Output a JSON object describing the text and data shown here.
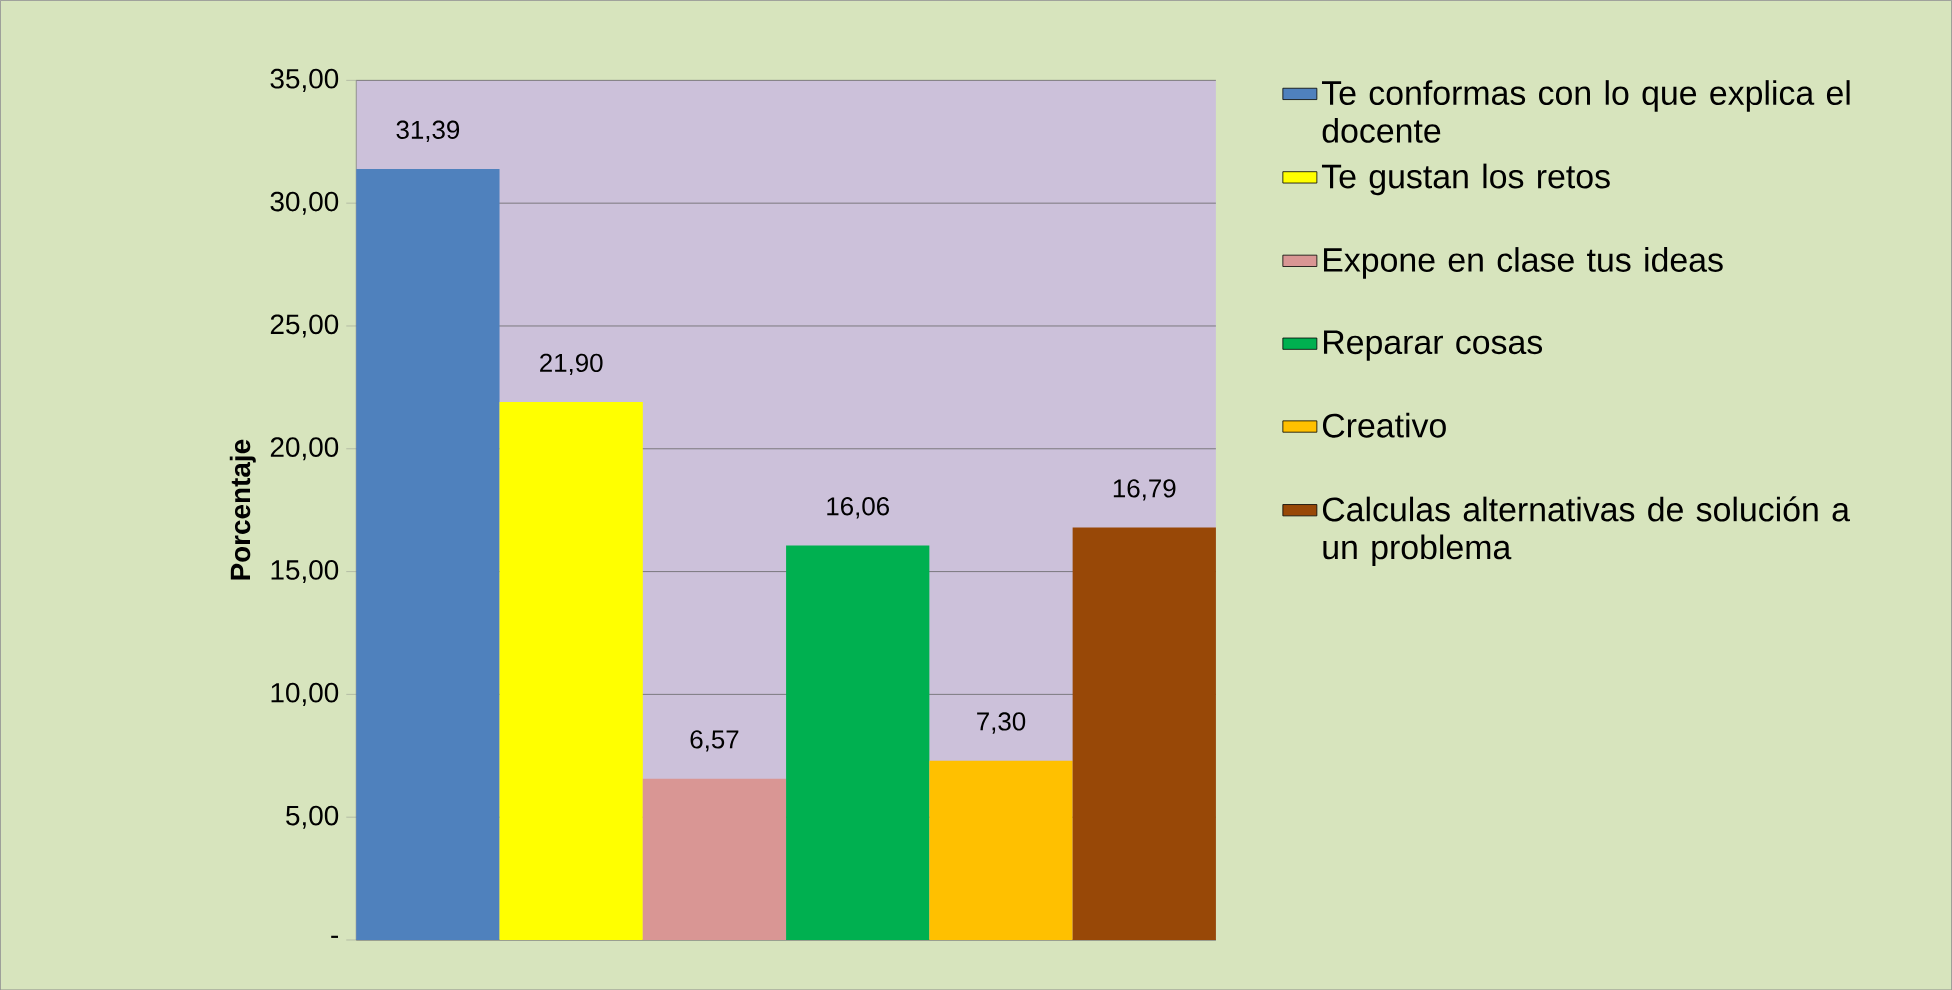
{
  "chart_data": {
    "type": "bar",
    "ylabel": "Porcentaje",
    "categories": [
      null
    ],
    "series": [
      {
        "name": "Te conformas con  lo que explica el docente",
        "color": "#4f81bd",
        "values": [
          31.39
        ],
        "value_labels": [
          "31,39"
        ]
      },
      {
        "name": "Te gustan los retos",
        "color": "#ffff00",
        "values": [
          21.9
        ],
        "value_labels": [
          "21,90"
        ]
      },
      {
        "name": "Expone en clase tus ideas",
        "color": "#d99694",
        "values": [
          6.57
        ],
        "value_labels": [
          "6,57"
        ]
      },
      {
        "name": "Reparar cosas",
        "color": "#00b050",
        "values": [
          16.06
        ],
        "value_labels": [
          "16,06"
        ]
      },
      {
        "name": "Creativo",
        "color": "#ffc000",
        "values": [
          7.3
        ],
        "value_labels": [
          "7,30"
        ]
      },
      {
        "name": "Calculas alternativas de solución  a un problema",
        "color": "#984807",
        "values": [
          16.79
        ],
        "value_labels": [
          "16,79"
        ]
      }
    ],
    "ylim": [
      0,
      35
    ],
    "yticks": [
      {
        "value": 0,
        "label": "-"
      },
      {
        "value": 5,
        "label": "5,00"
      },
      {
        "value": 10,
        "label": "10,00"
      },
      {
        "value": 15,
        "label": "15,00"
      },
      {
        "value": 20,
        "label": "20,00"
      },
      {
        "value": 25,
        "label": "25,00"
      },
      {
        "value": 30,
        "label": "30,00"
      },
      {
        "value": 35,
        "label": "35,00"
      }
    ],
    "grid": "y",
    "legend": "right"
  }
}
